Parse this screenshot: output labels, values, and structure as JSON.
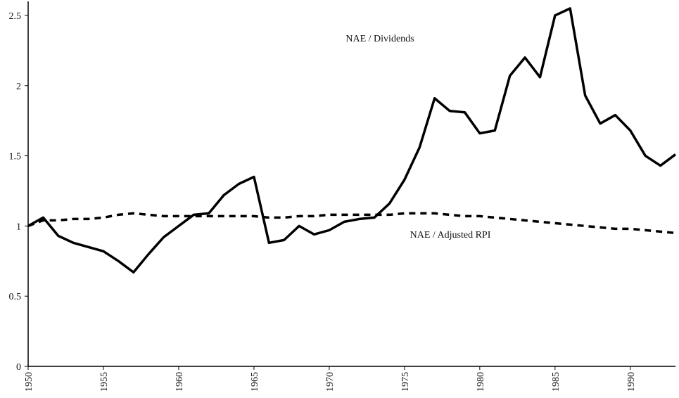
{
  "chart_data": {
    "type": "line",
    "x": [
      1950,
      1951,
      1952,
      1953,
      1954,
      1955,
      1956,
      1957,
      1958,
      1959,
      1960,
      1961,
      1962,
      1963,
      1964,
      1965,
      1966,
      1967,
      1968,
      1969,
      1970,
      1971,
      1972,
      1973,
      1974,
      1975,
      1976,
      1977,
      1978,
      1979,
      1980,
      1981,
      1982,
      1983,
      1984,
      1985,
      1986,
      1987,
      1988,
      1989,
      1990,
      1991,
      1992,
      1993
    ],
    "series": [
      {
        "name": "NAE / Dividends",
        "color": "#000000",
        "style": "solid",
        "values": [
          1.0,
          1.06,
          0.93,
          0.88,
          0.85,
          0.82,
          0.75,
          0.67,
          0.8,
          0.92,
          1.0,
          1.08,
          1.09,
          1.22,
          1.3,
          1.35,
          0.88,
          0.9,
          1.0,
          0.94,
          0.97,
          1.03,
          1.05,
          1.06,
          1.16,
          1.33,
          1.56,
          1.91,
          1.82,
          1.81,
          1.66,
          1.68,
          2.07,
          2.2,
          2.06,
          2.5,
          2.55,
          1.93,
          1.73,
          1.79,
          1.68,
          1.5,
          1.43,
          1.51
        ]
      },
      {
        "name": "NAE / Adjusted RPI",
        "color": "#000000",
        "style": "dashed",
        "values": [
          1.0,
          1.04,
          1.04,
          1.05,
          1.05,
          1.06,
          1.08,
          1.09,
          1.08,
          1.07,
          1.07,
          1.07,
          1.07,
          1.07,
          1.07,
          1.07,
          1.06,
          1.06,
          1.07,
          1.07,
          1.08,
          1.08,
          1.08,
          1.08,
          1.08,
          1.09,
          1.09,
          1.09,
          1.08,
          1.07,
          1.07,
          1.06,
          1.05,
          1.04,
          1.03,
          1.02,
          1.01,
          1.0,
          0.99,
          0.98,
          0.98,
          0.97,
          0.96,
          0.95
        ]
      }
    ],
    "xlim": [
      1950,
      1993
    ],
    "xticks": [
      1950,
      1955,
      1960,
      1965,
      1970,
      1975,
      1980,
      1985,
      1990
    ],
    "ylim": [
      0,
      2.6
    ],
    "yticks": [
      0,
      0.5,
      1,
      1.5,
      2,
      2.5
    ],
    "grid": false
  }
}
